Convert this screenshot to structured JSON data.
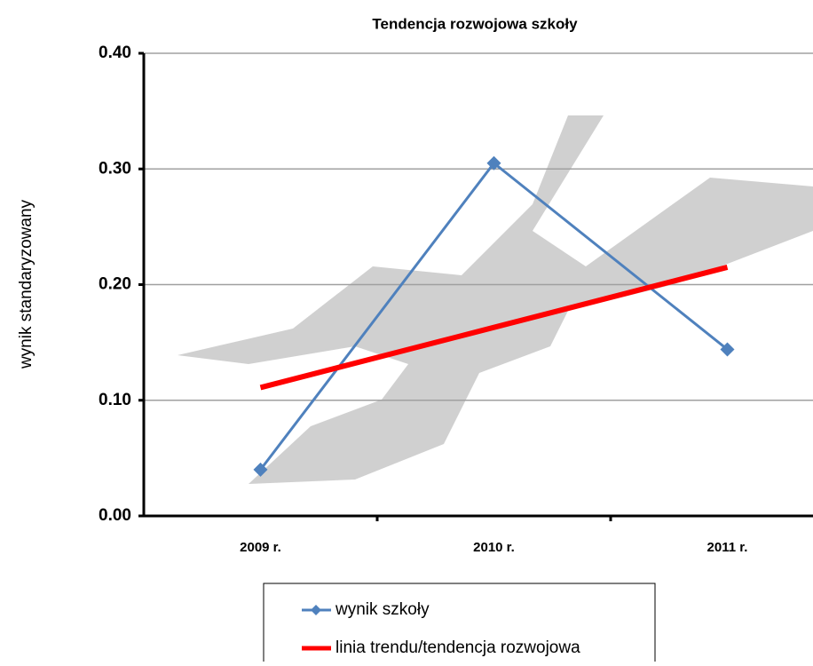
{
  "chart_data": {
    "type": "line",
    "title": "Tendencja rozwojowa szkoły",
    "y_label": "wynik standaryzowany",
    "categories": [
      "2009 r.",
      "2010 r.",
      "2011 r."
    ],
    "series": [
      {
        "name": "wynik szkoły",
        "color": "#4f81bd",
        "values": [
          0.04,
          0.305,
          0.144
        ]
      },
      {
        "name": "linia trendu/tendencja rozwojowa",
        "color": "#ff0000",
        "values": [
          0.111,
          0.163,
          0.215
        ]
      }
    ],
    "ylim": [
      0,
      0.4
    ],
    "yticks": [
      {
        "value": 0,
        "label": "0.00"
      },
      {
        "value": 0.1,
        "label": "0.10"
      },
      {
        "value": 0.2,
        "label": "0.20"
      },
      {
        "value": 0.3,
        "label": "0.30"
      },
      {
        "value": 0.4,
        "label": "0.40"
      }
    ],
    "grid": true
  }
}
